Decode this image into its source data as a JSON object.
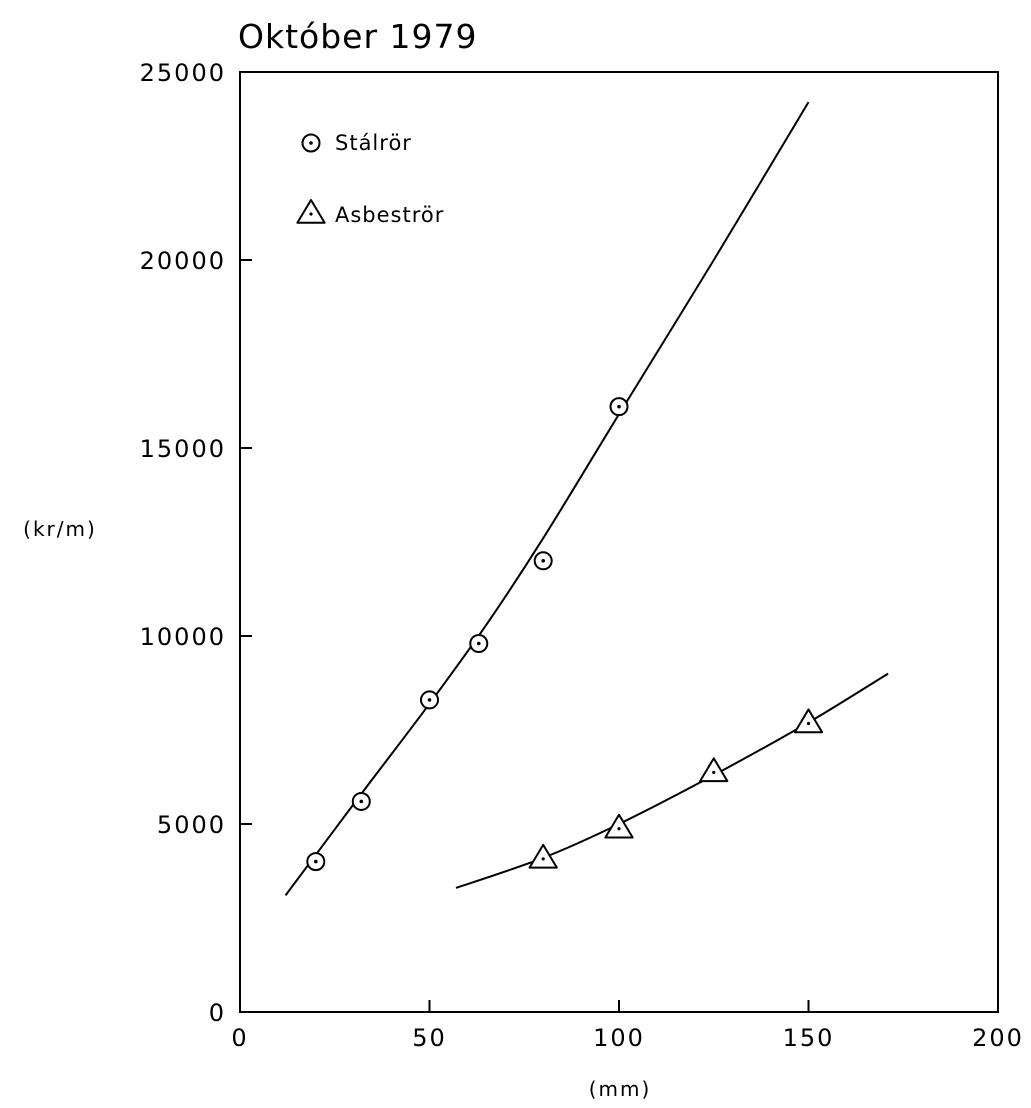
{
  "chart_data": {
    "type": "scatter",
    "title": "Október 1979",
    "xlabel": "(mm)",
    "ylabel": "(kr/m)",
    "xlim": [
      0,
      200
    ],
    "ylim": [
      0,
      25000
    ],
    "x_ticks": [
      "0",
      "50",
      "100",
      "150",
      "200"
    ],
    "y_ticks": [
      "0",
      "5000",
      "10000",
      "15000",
      "20000",
      "25000"
    ],
    "grid": false,
    "legend_position": "top-left",
    "series": [
      {
        "name": "Stálrör",
        "marker": "circle-dot",
        "points": [
          {
            "x": 20,
            "y": 4000
          },
          {
            "x": 32,
            "y": 5600
          },
          {
            "x": 50,
            "y": 8300
          },
          {
            "x": 63,
            "y": 9800
          },
          {
            "x": 80,
            "y": 12000
          },
          {
            "x": 100,
            "y": 16100
          }
        ],
        "fit_curve": [
          {
            "x": 12,
            "y": 3100
          },
          {
            "x": 32,
            "y": 5800
          },
          {
            "x": 50,
            "y": 8200
          },
          {
            "x": 65,
            "y": 10300
          },
          {
            "x": 80,
            "y": 12600
          },
          {
            "x": 100,
            "y": 15900
          },
          {
            "x": 125,
            "y": 20000
          },
          {
            "x": 150,
            "y": 24200
          }
        ]
      },
      {
        "name": "Asbeströr",
        "marker": "triangle-dot",
        "points": [
          {
            "x": 80,
            "y": 4100
          },
          {
            "x": 100,
            "y": 4900
          },
          {
            "x": 125,
            "y": 6400
          },
          {
            "x": 150,
            "y": 7700
          }
        ],
        "fit_curve": [
          {
            "x": 57,
            "y": 3300
          },
          {
            "x": 80,
            "y": 4100
          },
          {
            "x": 100,
            "y": 5000
          },
          {
            "x": 125,
            "y": 6300
          },
          {
            "x": 150,
            "y": 7700
          },
          {
            "x": 171,
            "y": 9000
          }
        ]
      }
    ]
  }
}
